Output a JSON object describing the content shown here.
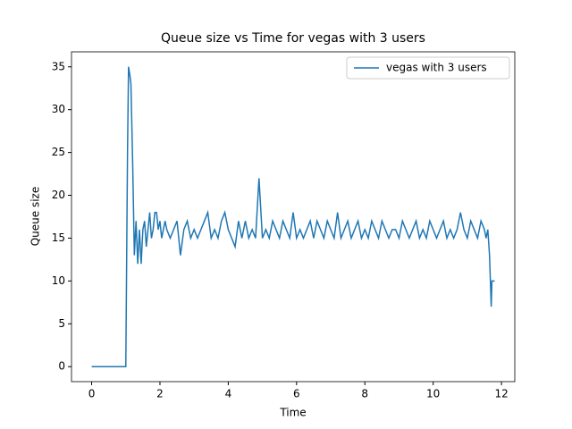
{
  "chart_data": {
    "type": "line",
    "title": "Queue size vs Time for vegas with 3 users",
    "x_label": "Time",
    "y_label": "Queue size",
    "x": [
      0,
      1.0,
      1.05,
      1.08,
      1.12,
      1.15,
      1.2,
      1.25,
      1.3,
      1.35,
      1.4,
      1.45,
      1.5,
      1.55,
      1.6,
      1.65,
      1.7,
      1.75,
      1.8,
      1.85,
      1.9,
      1.95,
      2.0,
      2.05,
      2.1,
      2.15,
      2.2,
      2.3,
      2.4,
      2.5,
      2.6,
      2.7,
      2.8,
      2.9,
      3.0,
      3.1,
      3.2,
      3.3,
      3.4,
      3.5,
      3.6,
      3.7,
      3.8,
      3.9,
      4.0,
      4.1,
      4.2,
      4.3,
      4.4,
      4.5,
      4.6,
      4.7,
      4.8,
      4.9,
      5.0,
      5.1,
      5.2,
      5.3,
      5.4,
      5.5,
      5.6,
      5.7,
      5.8,
      5.9,
      6.0,
      6.1,
      6.2,
      6.3,
      6.4,
      6.5,
      6.6,
      6.7,
      6.8,
      6.9,
      7.0,
      7.1,
      7.2,
      7.3,
      7.4,
      7.5,
      7.6,
      7.7,
      7.8,
      7.9,
      8.0,
      8.1,
      8.2,
      8.3,
      8.4,
      8.5,
      8.6,
      8.7,
      8.8,
      8.9,
      9.0,
      9.1,
      9.2,
      9.3,
      9.4,
      9.5,
      9.6,
      9.7,
      9.8,
      9.9,
      10.0,
      10.1,
      10.2,
      10.3,
      10.4,
      10.5,
      10.6,
      10.7,
      10.8,
      10.9,
      11.0,
      11.1,
      11.2,
      11.3,
      11.4,
      11.5,
      11.55,
      11.6,
      11.65,
      11.7,
      11.72,
      11.8
    ],
    "series": [
      {
        "name": "vegas with 3 users",
        "color": "#1f77b4",
        "values": [
          0,
          0,
          25,
          35,
          34,
          33,
          24,
          13,
          17,
          12,
          16,
          12,
          16,
          17,
          14,
          16,
          18,
          15,
          16,
          18,
          18,
          16,
          17,
          15,
          16,
          17,
          16,
          15,
          16,
          17,
          13,
          16,
          17,
          15,
          16,
          15,
          16,
          17,
          18,
          15,
          16,
          15,
          17,
          18,
          16,
          15,
          14,
          17,
          15,
          17,
          15,
          16,
          15,
          22,
          15,
          16,
          15,
          17,
          16,
          15,
          17,
          16,
          15,
          18,
          15,
          16,
          15,
          16,
          17,
          15,
          17,
          16,
          15,
          17,
          16,
          15,
          18,
          15,
          16,
          17,
          15,
          16,
          17,
          15,
          16,
          15,
          17,
          16,
          15,
          17,
          16,
          15,
          16,
          16,
          15,
          17,
          16,
          15,
          16,
          17,
          15,
          16,
          15,
          17,
          16,
          15,
          16,
          17,
          15,
          16,
          15,
          16,
          18,
          16,
          15,
          17,
          16,
          15,
          17,
          16,
          15,
          16,
          13,
          7,
          10,
          10
        ]
      }
    ],
    "xlim": [
      -0.59,
      12.39
    ],
    "ylim": [
      -1.75,
      36.75
    ],
    "xticks": [
      0,
      2,
      4,
      6,
      8,
      10,
      12
    ],
    "yticks": [
      0,
      5,
      10,
      15,
      20,
      25,
      30,
      35
    ],
    "legend": "upper right"
  }
}
